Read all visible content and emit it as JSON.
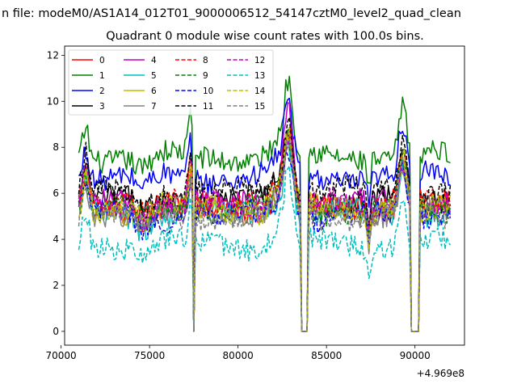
{
  "chart_data": {
    "type": "line",
    "suptitle": "n file: modeM0/AS1A14_012T01_9000006512_54147cztM0_level2_quad_clean",
    "title": "Quadrant 0 module wise count rates with 100.0s bins.",
    "xlabel": "",
    "ylabel": "",
    "offset_text": "+4.969e8",
    "xlim": [
      70200,
      92800
    ],
    "ylim": [
      -0.6,
      12.4
    ],
    "xticks": [
      70000,
      75000,
      80000,
      85000,
      90000
    ],
    "xtick_labels": [
      "70000",
      "75000",
      "80000",
      "85000",
      "90000"
    ],
    "yticks": [
      0,
      2,
      4,
      6,
      8,
      10,
      12
    ],
    "ytick_labels": [
      "0",
      "2",
      "4",
      "6",
      "8",
      "10",
      "12"
    ],
    "legend_position": "top-left",
    "x_start": 71000,
    "x_end": 92000,
    "bin_seconds": 100,
    "gaps": [
      [
        77500,
        77500
      ],
      [
        83600,
        83900
      ],
      [
        89800,
        90200
      ]
    ],
    "series": [
      {
        "name": "0",
        "color": "#ff0000",
        "style": "solid",
        "base": 5.4
      },
      {
        "name": "1",
        "color": "#008000",
        "style": "solid",
        "base": 7.6
      },
      {
        "name": "2",
        "color": "#0000ff",
        "style": "solid",
        "base": 6.7
      },
      {
        "name": "3",
        "color": "#000000",
        "style": "solid",
        "base": 5.7
      },
      {
        "name": "4",
        "color": "#bf00bf",
        "style": "solid",
        "base": 5.5
      },
      {
        "name": "5",
        "color": "#00bfbf",
        "style": "solid",
        "base": 5.1
      },
      {
        "name": "6",
        "color": "#bfbf00",
        "style": "solid",
        "base": 5.3
      },
      {
        "name": "7",
        "color": "#808080",
        "style": "solid",
        "base": 5.2
      },
      {
        "name": "8",
        "color": "#ff0000",
        "style": "dashed",
        "base": 5.6
      },
      {
        "name": "9",
        "color": "#008000",
        "style": "dashed",
        "base": 5.3
      },
      {
        "name": "10",
        "color": "#0000ff",
        "style": "dashed",
        "base": 5.0
      },
      {
        "name": "11",
        "color": "#000000",
        "style": "dashed",
        "base": 6.1
      },
      {
        "name": "12",
        "color": "#bf00bf",
        "style": "dashed",
        "base": 5.5
      },
      {
        "name": "13",
        "color": "#00bfbf",
        "style": "dashed",
        "base": 3.8
      },
      {
        "name": "14",
        "color": "#bfbf00",
        "style": "dashed",
        "base": 5.4
      },
      {
        "name": "15",
        "color": "#808080",
        "style": "dashed",
        "base": 5.0
      }
    ]
  }
}
